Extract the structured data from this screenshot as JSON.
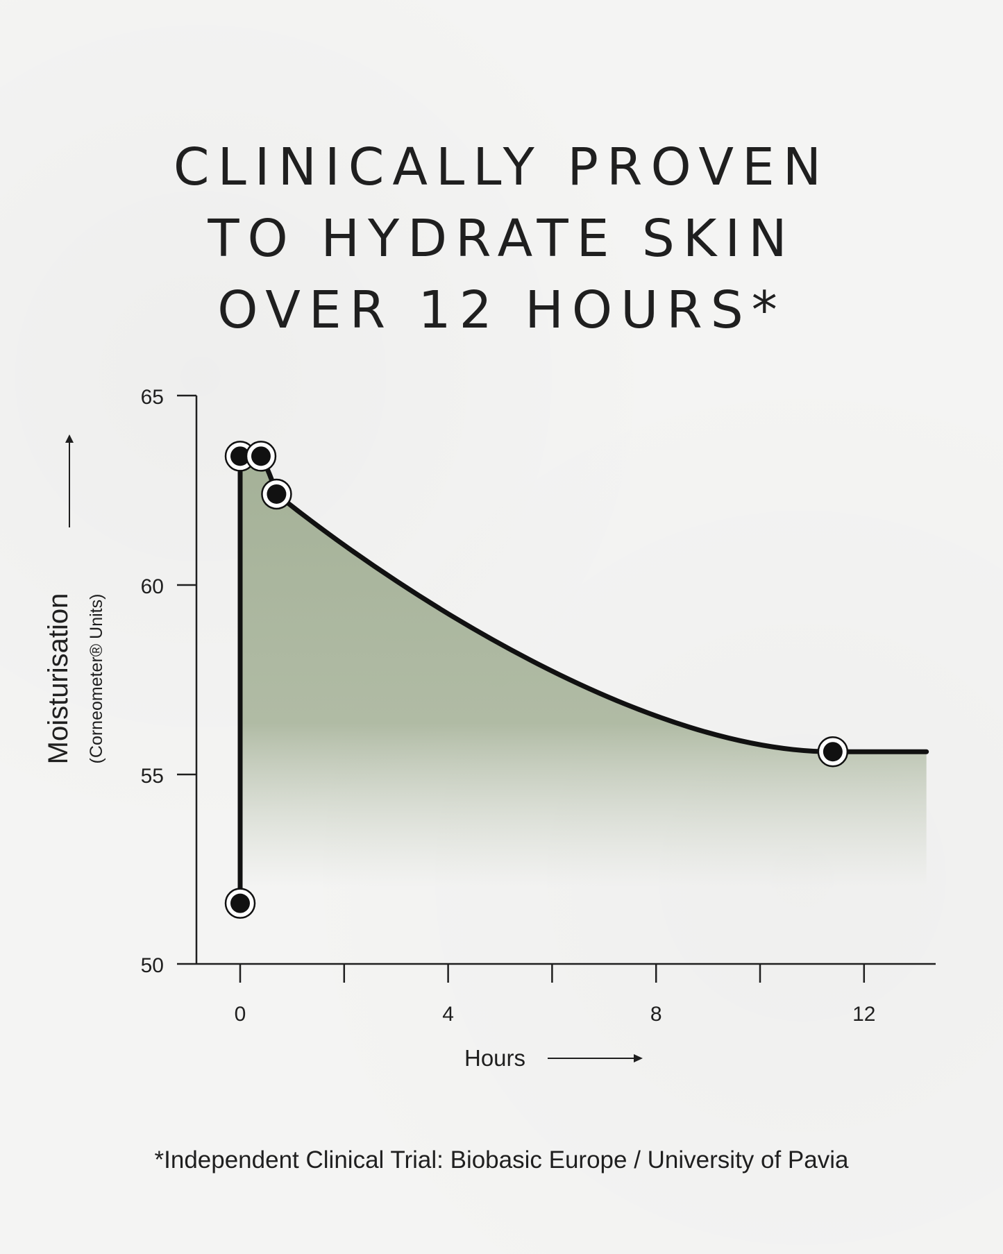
{
  "title_lines": [
    "CLINICALLY PROVEN",
    "TO HYDRATE SKIN",
    "OVER 12 HOURS*"
  ],
  "footnote": "*Independent Clinical Trial: Biobasic Europe / University of Pavia",
  "colors": {
    "fill": "#a3b096",
    "line": "#111111",
    "text": "#1f1f1f"
  },
  "chart_data": {
    "type": "area",
    "ylabel": "Moisturisation",
    "ylabel_sub": "(Corneometer® Units)",
    "xlabel": "Hours",
    "xlim": [
      0,
      13.2
    ],
    "ylim": [
      50,
      65
    ],
    "xticks": [
      0,
      2,
      4,
      6,
      8,
      10,
      12
    ],
    "xtick_labels": [
      "0",
      "",
      "4",
      "",
      "8",
      "",
      "12"
    ],
    "yticks": [
      50,
      55,
      60,
      65
    ],
    "ytick_labels": [
      "50",
      "55",
      "60",
      "65"
    ],
    "series": [
      {
        "points": [
          {
            "x": 0,
            "y": 51.6
          },
          {
            "x": 0,
            "y": 63.4
          },
          {
            "x": 0.4,
            "y": 63.4
          },
          {
            "x": 0.7,
            "y": 62.4
          },
          {
            "x": 11.4,
            "y": 55.6
          }
        ]
      }
    ]
  }
}
